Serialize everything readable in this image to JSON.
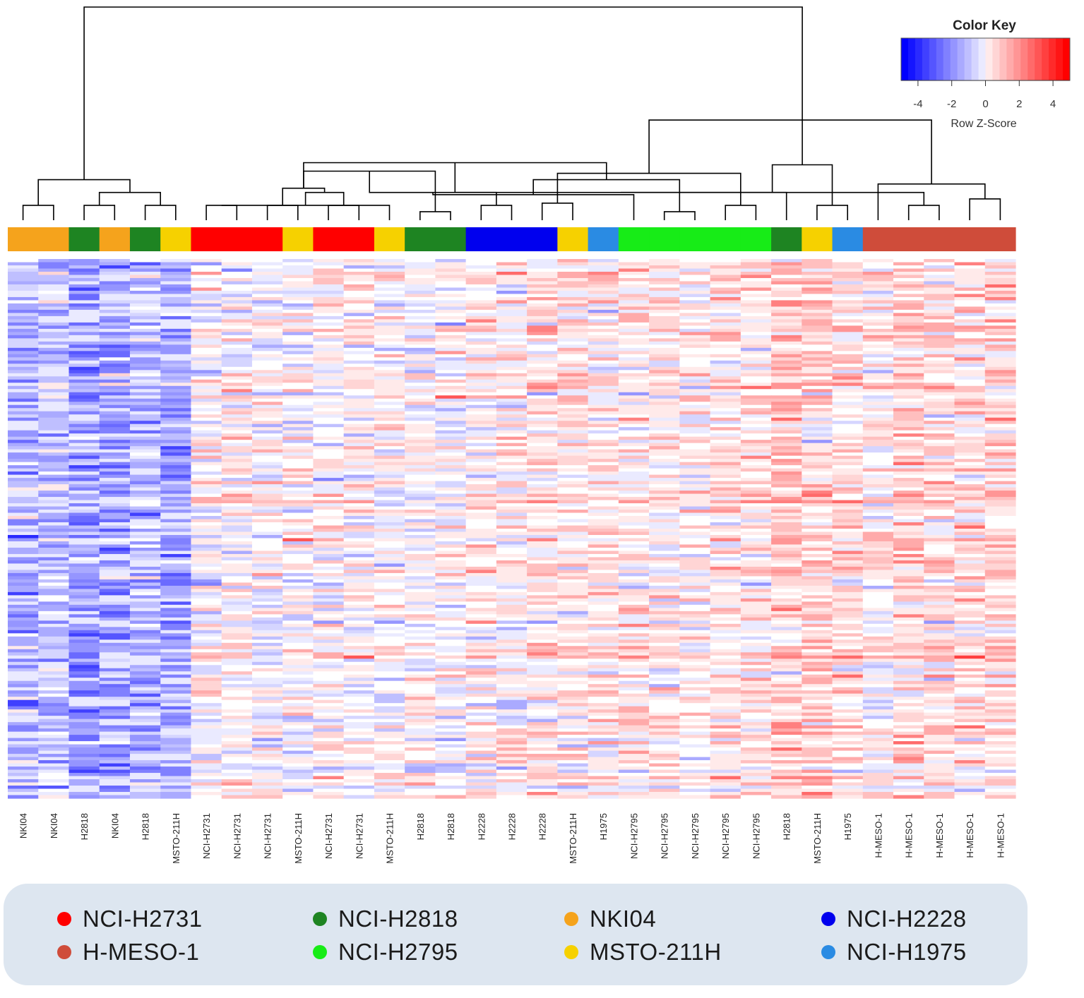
{
  "chart_data": {
    "type": "heatmap",
    "title": "",
    "color_key": {
      "title": "Color Key",
      "label": "Row Z-Score",
      "range": [
        -5,
        5
      ],
      "ticks": [
        -4,
        -2,
        0,
        2,
        4
      ],
      "tick_labels": [
        "-4",
        "-2",
        "0",
        "2",
        "4"
      ],
      "low_color": "#0000ff",
      "mid_color": "#ffffff",
      "high_color": "#ff0000",
      "bins": 24
    },
    "samples": [
      {
        "label": "NKI04",
        "cell_line": "NKI04",
        "cluster": 1
      },
      {
        "label": "NKI04",
        "cell_line": "NKI04",
        "cluster": 1
      },
      {
        "label": "H2818",
        "cell_line": "NCI-H2818",
        "cluster": 1
      },
      {
        "label": "NKI04",
        "cell_line": "NKI04",
        "cluster": 1
      },
      {
        "label": "H2818",
        "cell_line": "NCI-H2818",
        "cluster": 1
      },
      {
        "label": "MSTO-211H",
        "cell_line": "MSTO-211H",
        "cluster": 1
      },
      {
        "label": "NCI-H2731",
        "cell_line": "NCI-H2731",
        "cluster": 2
      },
      {
        "label": "NCI-H2731",
        "cell_line": "NCI-H2731",
        "cluster": 2
      },
      {
        "label": "NCI-H2731",
        "cell_line": "NCI-H2731",
        "cluster": 2
      },
      {
        "label": "MSTO-211H",
        "cell_line": "MSTO-211H",
        "cluster": 2
      },
      {
        "label": "NCI-H2731",
        "cell_line": "NCI-H2731",
        "cluster": 2
      },
      {
        "label": "NCI-H2731",
        "cell_line": "NCI-H2731",
        "cluster": 2
      },
      {
        "label": "MSTO-211H",
        "cell_line": "MSTO-211H",
        "cluster": 2
      },
      {
        "label": "H2818",
        "cell_line": "NCI-H2818",
        "cluster": 2
      },
      {
        "label": "H2818",
        "cell_line": "NCI-H2818",
        "cluster": 2
      },
      {
        "label": "H2228",
        "cell_line": "NCI-H2228",
        "cluster": 2
      },
      {
        "label": "H2228",
        "cell_line": "NCI-H2228",
        "cluster": 2
      },
      {
        "label": "H2228",
        "cell_line": "NCI-H2228",
        "cluster": 2
      },
      {
        "label": "MSTO-211H",
        "cell_line": "MSTO-211H",
        "cluster": 2
      },
      {
        "label": "H1975",
        "cell_line": "NCI-H1975",
        "cluster": 2
      },
      {
        "label": "NCI-H2795",
        "cell_line": "NCI-H2795",
        "cluster": 2
      },
      {
        "label": "NCI-H2795",
        "cell_line": "NCI-H2795",
        "cluster": 2
      },
      {
        "label": "NCI-H2795",
        "cell_line": "NCI-H2795",
        "cluster": 2
      },
      {
        "label": "NCI-H2795",
        "cell_line": "NCI-H2795",
        "cluster": 2
      },
      {
        "label": "NCI-H2795",
        "cell_line": "NCI-H2795",
        "cluster": 2
      },
      {
        "label": "H2818",
        "cell_line": "NCI-H2818",
        "cluster": 3
      },
      {
        "label": "MSTO-211H",
        "cell_line": "MSTO-211H",
        "cluster": 3
      },
      {
        "label": "H1975",
        "cell_line": "NCI-H1975",
        "cluster": 3
      },
      {
        "label": "H-MESO-1",
        "cell_line": "H-MESO-1",
        "cluster": 3
      },
      {
        "label": "H-MESO-1",
        "cell_line": "H-MESO-1",
        "cluster": 3
      },
      {
        "label": "H-MESO-1",
        "cell_line": "H-MESO-1",
        "cluster": 3
      },
      {
        "label": "H-MESO-1",
        "cell_line": "H-MESO-1",
        "cluster": 3
      },
      {
        "label": "H-MESO-1",
        "cell_line": "H-MESO-1",
        "cluster": 3
      }
    ],
    "column_mean_zscore": [
      -1.6,
      -1.2,
      -2.0,
      -2.0,
      -1.4,
      -1.8,
      0.0,
      0.1,
      -0.1,
      -0.1,
      0.1,
      0.1,
      0.0,
      -0.1,
      0.0,
      0.3,
      0.2,
      0.5,
      0.4,
      0.4,
      0.3,
      0.4,
      0.3,
      0.6,
      0.5,
      1.1,
      0.8,
      0.6,
      0.3,
      0.9,
      0.6,
      0.6,
      0.7
    ],
    "n_gene_rows": 170,
    "row_dendrogram": "not shown",
    "column_dendrogram": [
      [
        0,
        1
      ],
      [
        2,
        3
      ],
      [
        4,
        5
      ],
      [
        -2,
        -3
      ],
      [
        -1,
        -4
      ],
      [
        6,
        7
      ],
      [
        13,
        14
      ],
      [
        -6,
        12
      ],
      [
        10,
        11
      ],
      [
        -8,
        -9
      ],
      [
        8,
        9
      ],
      [
        -10,
        -11
      ],
      [
        -7,
        -12
      ],
      [
        15,
        16
      ],
      [
        17,
        18
      ],
      [
        -13,
        -14
      ],
      [
        21,
        22
      ],
      [
        -16,
        20
      ],
      [
        23,
        24
      ],
      [
        -17,
        -18
      ],
      [
        -15,
        -19
      ],
      [
        -12,
        -20
      ],
      [
        26,
        27
      ],
      [
        -22,
        25
      ],
      [
        29,
        30
      ],
      [
        31,
        32
      ],
      [
        -24,
        -25
      ],
      [
        28,
        -26
      ],
      [
        -23,
        -27
      ],
      [
        -21,
        -28
      ],
      [
        -5,
        -29
      ]
    ],
    "dendrogram_heights": [
      0.07,
      0.07,
      0.07,
      0.13,
      0.19,
      0.07,
      0.04,
      0.07,
      0.07,
      0.13,
      0.07,
      0.15,
      0.23,
      0.07,
      0.08,
      0.13,
      0.04,
      0.12,
      0.07,
      0.19,
      0.22,
      0.27,
      0.07,
      0.13,
      0.07,
      0.1,
      0.13,
      0.17,
      0.26,
      0.47,
      1.0
    ],
    "legend": [
      {
        "label": "NCI-H2731",
        "color": "#ff0000"
      },
      {
        "label": "NCI-H2818",
        "color": "#1e8422"
      },
      {
        "label": "NKI04",
        "color": "#f5a31c"
      },
      {
        "label": "NCI-H2228",
        "color": "#0000ee"
      },
      {
        "label": "H-MESO-1",
        "color": "#cf4c3a"
      },
      {
        "label": "NCI-H2795",
        "color": "#17ec17"
      },
      {
        "label": "MSTO-211H",
        "color": "#f6d100"
      },
      {
        "label": "NCI-H1975",
        "color": "#2a8be3"
      }
    ]
  }
}
